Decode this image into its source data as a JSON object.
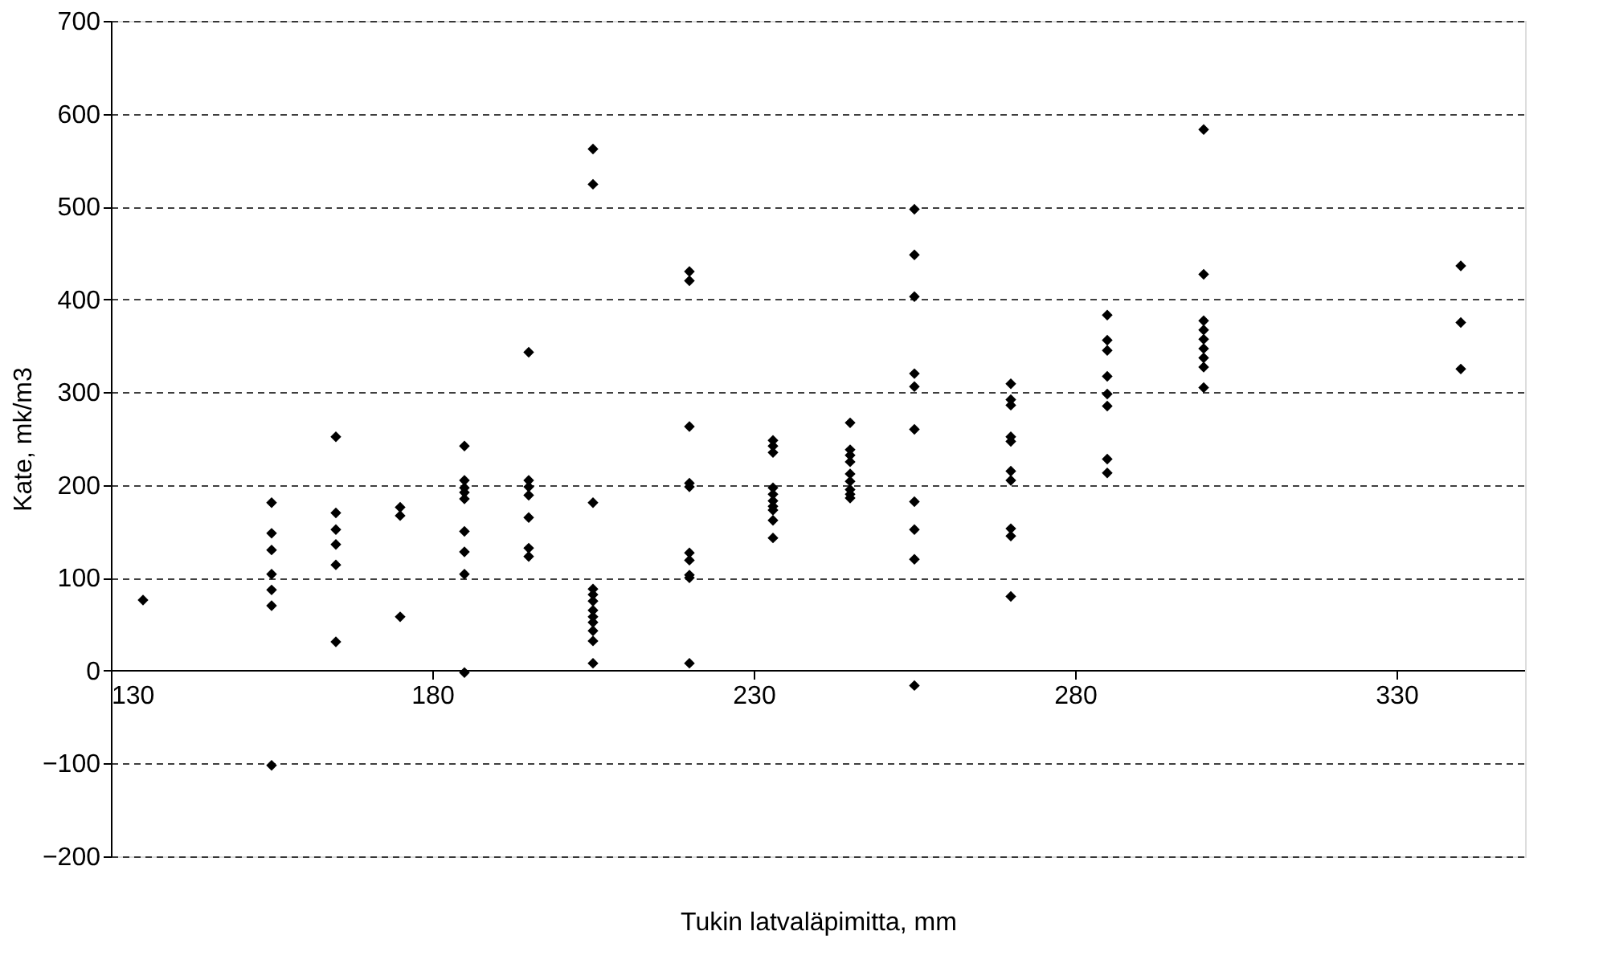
{
  "chart_data": {
    "type": "scatter",
    "xlabel": "Tukin latvaläpimitta, mm",
    "ylabel": "Kate, mk/m3",
    "xlim": [
      130,
      350
    ],
    "xticks": [
      130,
      180,
      230,
      280,
      330
    ],
    "ylim": [
      -200,
      700
    ],
    "yticks": [
      -200,
      -100,
      0,
      100,
      200,
      300,
      400,
      500,
      600,
      700
    ],
    "grid": "y",
    "marker": "diamond",
    "legend": false,
    "series": [
      {
        "color": "#000000",
        "x": [
          135,
          155,
          155,
          155,
          155,
          155,
          155,
          155,
          165,
          165,
          165,
          165,
          165,
          165,
          175,
          175,
          175,
          185,
          185,
          185,
          185,
          185,
          185,
          185,
          185,
          185,
          195,
          195,
          195,
          195,
          195,
          195,
          195,
          205,
          205,
          205,
          205,
          205,
          205,
          205,
          205,
          205,
          205,
          205,
          205,
          220,
          220,
          220,
          220,
          220,
          220,
          220,
          220,
          220,
          220,
          233,
          233,
          233,
          233,
          233,
          233,
          233,
          233,
          233,
          233,
          245,
          245,
          245,
          245,
          245,
          245,
          245,
          245,
          245,
          255,
          255,
          255,
          255,
          255,
          255,
          255,
          255,
          255,
          255,
          270,
          270,
          270,
          270,
          270,
          270,
          270,
          270,
          270,
          270,
          285,
          285,
          285,
          285,
          285,
          285,
          285,
          285,
          300,
          300,
          300,
          300,
          300,
          300,
          300,
          300,
          300,
          340,
          340,
          340
        ],
        "values": [
          76,
          181,
          148,
          130,
          104,
          87,
          70,
          -102,
          252,
          170,
          152,
          136,
          114,
          31,
          176,
          167,
          58,
          242,
          205,
          197,
          192,
          185,
          150,
          128,
          104,
          -2,
          343,
          205,
          198,
          189,
          165,
          132,
          123,
          562,
          524,
          181,
          88,
          82,
          75,
          65,
          58,
          52,
          43,
          32,
          8,
          430,
          420,
          263,
          202,
          198,
          127,
          119,
          103,
          100,
          8,
          248,
          242,
          235,
          197,
          190,
          183,
          177,
          173,
          162,
          143,
          267,
          238,
          232,
          225,
          212,
          204,
          195,
          190,
          186,
          497,
          448,
          403,
          320,
          306,
          260,
          182,
          152,
          120,
          -16,
          309,
          292,
          286,
          252,
          247,
          215,
          205,
          153,
          145,
          80,
          383,
          356,
          345,
          317,
          298,
          285,
          228,
          213,
          583,
          427,
          377,
          367,
          357,
          347,
          337,
          327,
          305,
          436,
          375,
          325
        ]
      }
    ]
  }
}
